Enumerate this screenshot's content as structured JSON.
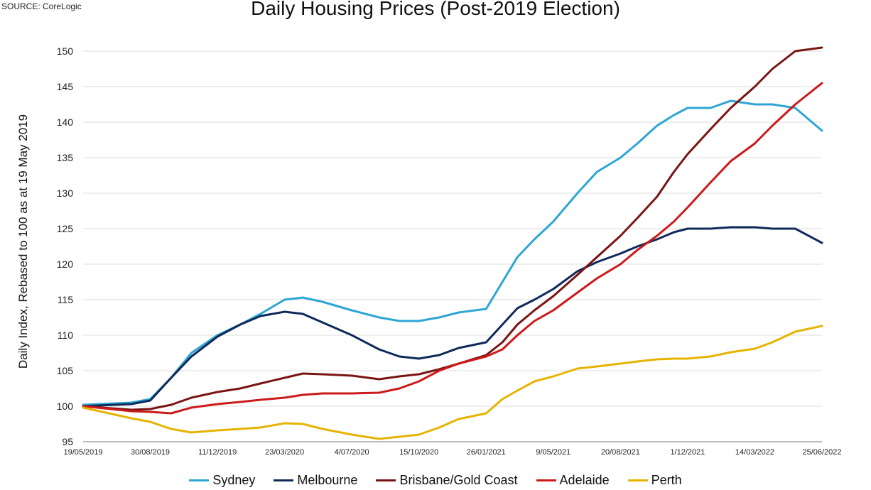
{
  "source": "SOURCE: CoreLogic",
  "chart_data": {
    "type": "line",
    "title": "Daily Housing Prices (Post-2019 Election)",
    "xlabel": "",
    "ylabel": "Daily Index, Rebased to 100 as at 19 May 2019",
    "ylim": [
      95,
      150
    ],
    "yticks": [
      95,
      100,
      105,
      110,
      115,
      120,
      125,
      130,
      135,
      140,
      145,
      150
    ],
    "x_range": [
      "2019-05-19",
      "2022-06-25"
    ],
    "xtick_labels": [
      "19/05/2019",
      "30/08/2019",
      "11/12/2019",
      "23/03/2020",
      "4/07/2020",
      "15/10/2020",
      "26/01/2021",
      "9/05/2021",
      "20/08/2021",
      "1/12/2021",
      "14/03/2022",
      "25/06/2022"
    ],
    "grid": true,
    "legend_position": "bottom",
    "x": [
      "2019-05-19",
      "2019-08-01",
      "2019-08-30",
      "2019-10-01",
      "2019-11-01",
      "2019-12-11",
      "2020-01-15",
      "2020-02-15",
      "2020-03-23",
      "2020-04-20",
      "2020-05-20",
      "2020-07-04",
      "2020-08-15",
      "2020-09-15",
      "2020-10-15",
      "2020-11-15",
      "2020-12-15",
      "2021-01-26",
      "2021-02-20",
      "2021-03-15",
      "2021-04-10",
      "2021-05-09",
      "2021-06-15",
      "2021-07-15",
      "2021-08-20",
      "2021-09-15",
      "2021-10-15",
      "2021-11-10",
      "2021-12-01",
      "2022-01-05",
      "2022-02-05",
      "2022-03-14",
      "2022-04-10",
      "2022-05-15",
      "2022-06-25"
    ],
    "series": [
      {
        "name": "Sydney",
        "color": "#2ea6d4",
        "values": [
          100.2,
          100.5,
          101.0,
          104.0,
          107.5,
          110.0,
          111.5,
          113.0,
          115.0,
          115.3,
          114.7,
          113.5,
          112.5,
          112.0,
          112.0,
          112.5,
          113.2,
          113.7,
          117.5,
          121.0,
          123.5,
          126.0,
          130.0,
          133.0,
          135.0,
          137.0,
          139.5,
          141.0,
          142.0,
          142.0,
          143.0,
          142.5,
          142.5,
          142.0,
          138.8
        ]
      },
      {
        "name": "Melbourne",
        "color": "#0f2a5a",
        "values": [
          100.0,
          100.3,
          100.8,
          104.0,
          107.0,
          109.8,
          111.5,
          112.7,
          113.3,
          113.0,
          111.8,
          110.0,
          108.0,
          107.0,
          106.7,
          107.2,
          108.2,
          109.0,
          111.5,
          113.8,
          115.0,
          116.5,
          119.0,
          120.3,
          121.5,
          122.5,
          123.5,
          124.5,
          125.0,
          125.0,
          125.2,
          125.2,
          125.0,
          125.0,
          123.0
        ]
      },
      {
        "name": "Brisbane/Gold Coast",
        "color": "#7a1414",
        "values": [
          100.0,
          99.5,
          99.6,
          100.2,
          101.2,
          102.0,
          102.5,
          103.2,
          104.0,
          104.6,
          104.5,
          104.3,
          103.8,
          104.2,
          104.5,
          105.2,
          106.0,
          107.2,
          109.0,
          111.5,
          113.5,
          115.5,
          118.5,
          121.0,
          124.0,
          126.5,
          129.5,
          133.0,
          135.5,
          139.0,
          142.0,
          145.0,
          147.5,
          150.0,
          150.5
        ]
      },
      {
        "name": "Adelaide",
        "color": "#cc1a1a",
        "values": [
          100.0,
          99.3,
          99.2,
          99.0,
          99.8,
          100.3,
          100.6,
          100.9,
          101.2,
          101.6,
          101.8,
          101.8,
          101.9,
          102.5,
          103.5,
          105.0,
          106.0,
          107.0,
          108.0,
          110.0,
          112.0,
          113.5,
          116.0,
          118.0,
          120.0,
          122.0,
          124.0,
          126.0,
          128.0,
          131.5,
          134.5,
          137.0,
          139.5,
          142.5,
          145.5
        ]
      },
      {
        "name": "Perth",
        "color": "#e6b400",
        "values": [
          99.8,
          98.3,
          97.8,
          96.8,
          96.3,
          96.6,
          96.8,
          97.0,
          97.6,
          97.5,
          96.8,
          96.0,
          95.4,
          95.7,
          96.0,
          97.0,
          98.2,
          99.0,
          101.0,
          102.2,
          103.5,
          104.2,
          105.3,
          105.6,
          106.0,
          106.3,
          106.6,
          106.7,
          106.7,
          107.0,
          107.6,
          108.1,
          109.0,
          110.5,
          111.3
        ]
      }
    ]
  }
}
